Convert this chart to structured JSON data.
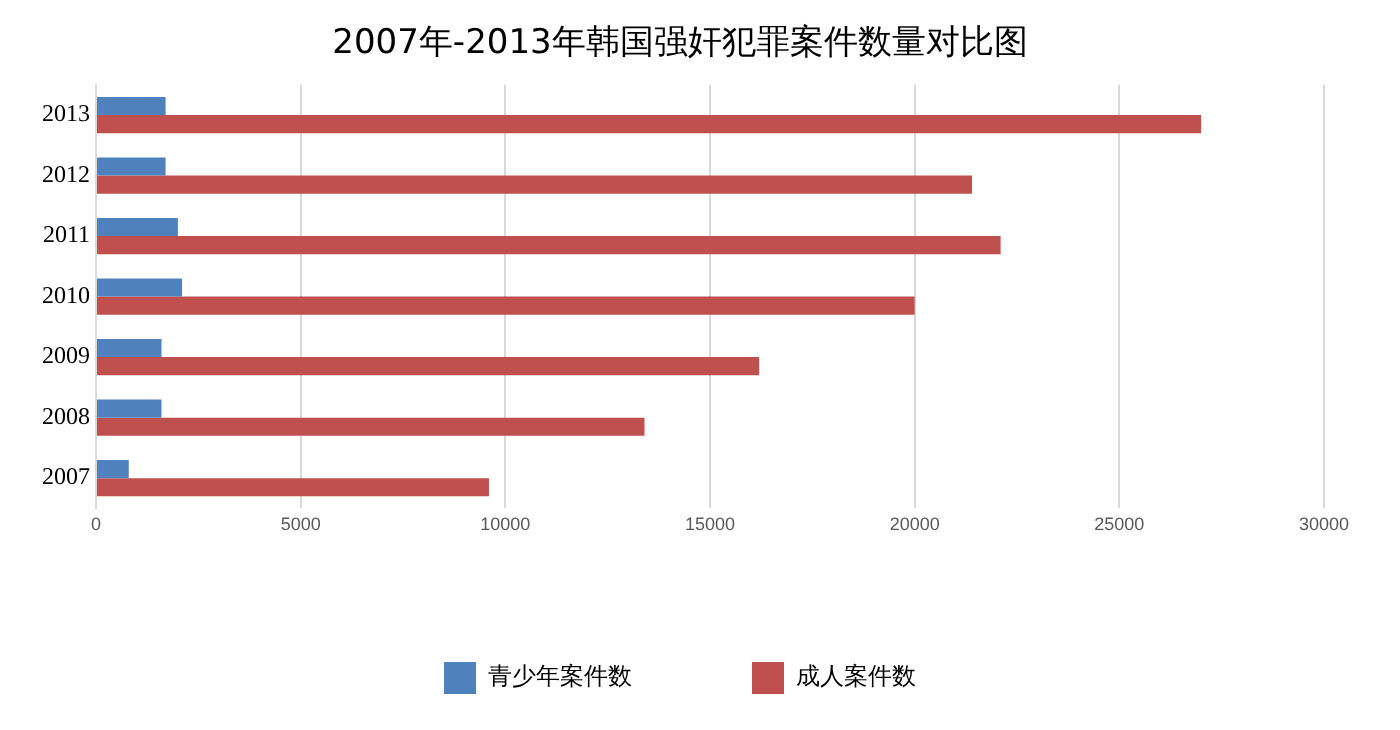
{
  "chart_data": {
    "type": "bar",
    "orientation": "horizontal",
    "title": "2007年-2013年韩国强奸犯罪案件数量对比图",
    "categories": [
      "2013",
      "2012",
      "2011",
      "2010",
      "2009",
      "2008",
      "2007"
    ],
    "series": [
      {
        "name": "青少年案件数",
        "color": "#4f81bd",
        "values": [
          1700,
          1700,
          2000,
          2100,
          1600,
          1600,
          800
        ]
      },
      {
        "name": "成人案件数",
        "color": "#c0504d",
        "values": [
          27000,
          21400,
          22100,
          20000,
          16200,
          13400,
          9600
        ]
      }
    ],
    "xlim": [
      0,
      30000
    ],
    "xticks": [
      0,
      5000,
      10000,
      15000,
      20000,
      25000,
      30000
    ],
    "grid": "x",
    "legend": "bottom"
  }
}
